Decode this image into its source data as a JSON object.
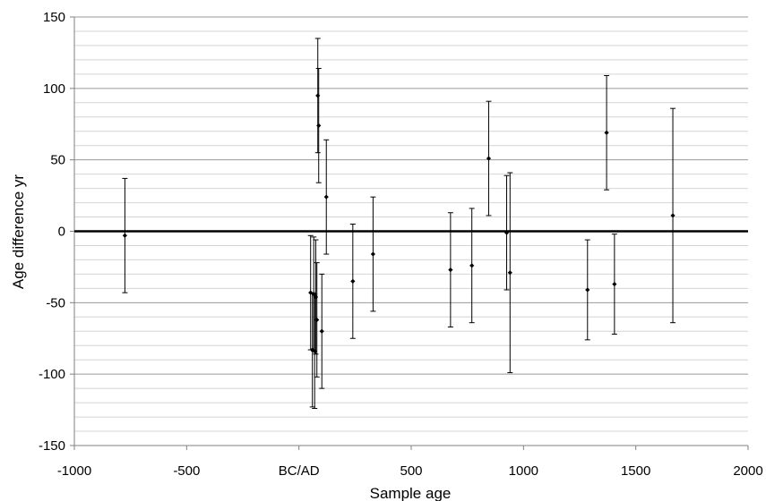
{
  "chart_data": {
    "type": "scatter",
    "title": "",
    "xlabel": "Sample age",
    "ylabel": "Age difference   yr",
    "xlim": [
      -1000,
      2000
    ],
    "ylim": [
      -150,
      150
    ],
    "x_ticks": [
      -1000,
      -500,
      0,
      500,
      1000,
      1500,
      2000
    ],
    "x_tick_labels": [
      "-1000",
      "-500",
      "BC/AD",
      "500",
      "1000",
      "1500",
      "2000"
    ],
    "y_ticks": [
      -150,
      -100,
      -50,
      0,
      50,
      100,
      150
    ],
    "y_tick_labels": [
      "-150",
      "-100",
      "-50",
      "0",
      "50",
      "100",
      "150"
    ],
    "minor_grid_step": 10,
    "grid": true,
    "zero_line": true,
    "error_bar_halfwidth": 40,
    "points": [
      {
        "x": -775,
        "y": -3
      },
      {
        "x": 52,
        "y": -43
      },
      {
        "x": 60,
        "y": -83
      },
      {
        "x": 66,
        "y": -44
      },
      {
        "x": 70,
        "y": -84
      },
      {
        "x": 75,
        "y": -46
      },
      {
        "x": 80,
        "y": -62
      },
      {
        "x": 84,
        "y": 95
      },
      {
        "x": 88,
        "y": 74
      },
      {
        "x": 102,
        "y": -70
      },
      {
        "x": 122,
        "y": 24
      },
      {
        "x": 240,
        "y": -35
      },
      {
        "x": 330,
        "y": -16
      },
      {
        "x": 675,
        "y": -27
      },
      {
        "x": 770,
        "y": -24
      },
      {
        "x": 845,
        "y": 51
      },
      {
        "x": 925,
        "y": -1
      },
      {
        "x": 940,
        "y": -29,
        "err": 70
      },
      {
        "x": 1285,
        "y": -41,
        "err": 35
      },
      {
        "x": 1370,
        "y": 69
      },
      {
        "x": 1405,
        "y": -37,
        "err": 35
      },
      {
        "x": 1665,
        "y": 11,
        "err": 75
      }
    ]
  }
}
